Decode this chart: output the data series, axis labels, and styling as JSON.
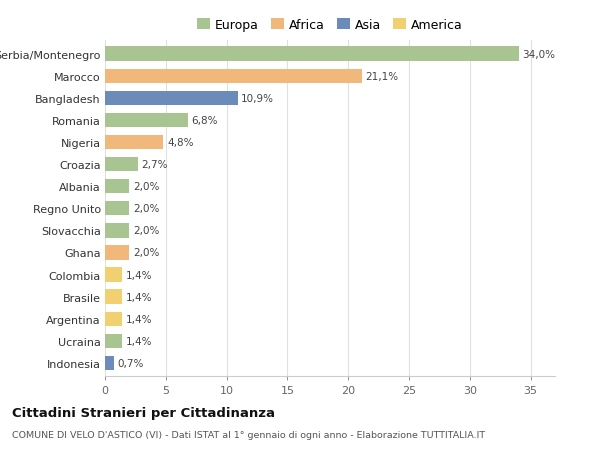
{
  "countries": [
    "Serbia/Montenegro",
    "Marocco",
    "Bangladesh",
    "Romania",
    "Nigeria",
    "Croazia",
    "Albania",
    "Regno Unito",
    "Slovacchia",
    "Ghana",
    "Colombia",
    "Brasile",
    "Argentina",
    "Ucraina",
    "Indonesia"
  ],
  "values": [
    34.0,
    21.1,
    10.9,
    6.8,
    4.8,
    2.7,
    2.0,
    2.0,
    2.0,
    2.0,
    1.4,
    1.4,
    1.4,
    1.4,
    0.7
  ],
  "labels": [
    "34,0%",
    "21,1%",
    "10,9%",
    "6,8%",
    "4,8%",
    "2,7%",
    "2,0%",
    "2,0%",
    "2,0%",
    "2,0%",
    "1,4%",
    "1,4%",
    "1,4%",
    "1,4%",
    "0,7%"
  ],
  "continents": [
    "Europa",
    "Africa",
    "Asia",
    "Europa",
    "Africa",
    "Europa",
    "Europa",
    "Europa",
    "Europa",
    "Africa",
    "America",
    "America",
    "America",
    "Europa",
    "Asia"
  ],
  "continent_colors": {
    "Europa": "#a8c490",
    "Africa": "#f0b87a",
    "Asia": "#6b8cba",
    "America": "#f0d070"
  },
  "legend_labels": [
    "Europa",
    "Africa",
    "Asia",
    "America"
  ],
  "legend_colors": [
    "#a8c490",
    "#f0b87a",
    "#6b8cba",
    "#f0d070"
  ],
  "title": "Cittadini Stranieri per Cittadinanza",
  "subtitle": "COMUNE DI VELO D'ASTICO (VI) - Dati ISTAT al 1° gennaio di ogni anno - Elaborazione TUTTITALIA.IT",
  "xlim": [
    0,
    37
  ],
  "xticks": [
    0,
    5,
    10,
    15,
    20,
    25,
    30,
    35
  ],
  "bg_color": "#ffffff",
  "grid_color": "#e0e0e0",
  "bar_height": 0.65
}
